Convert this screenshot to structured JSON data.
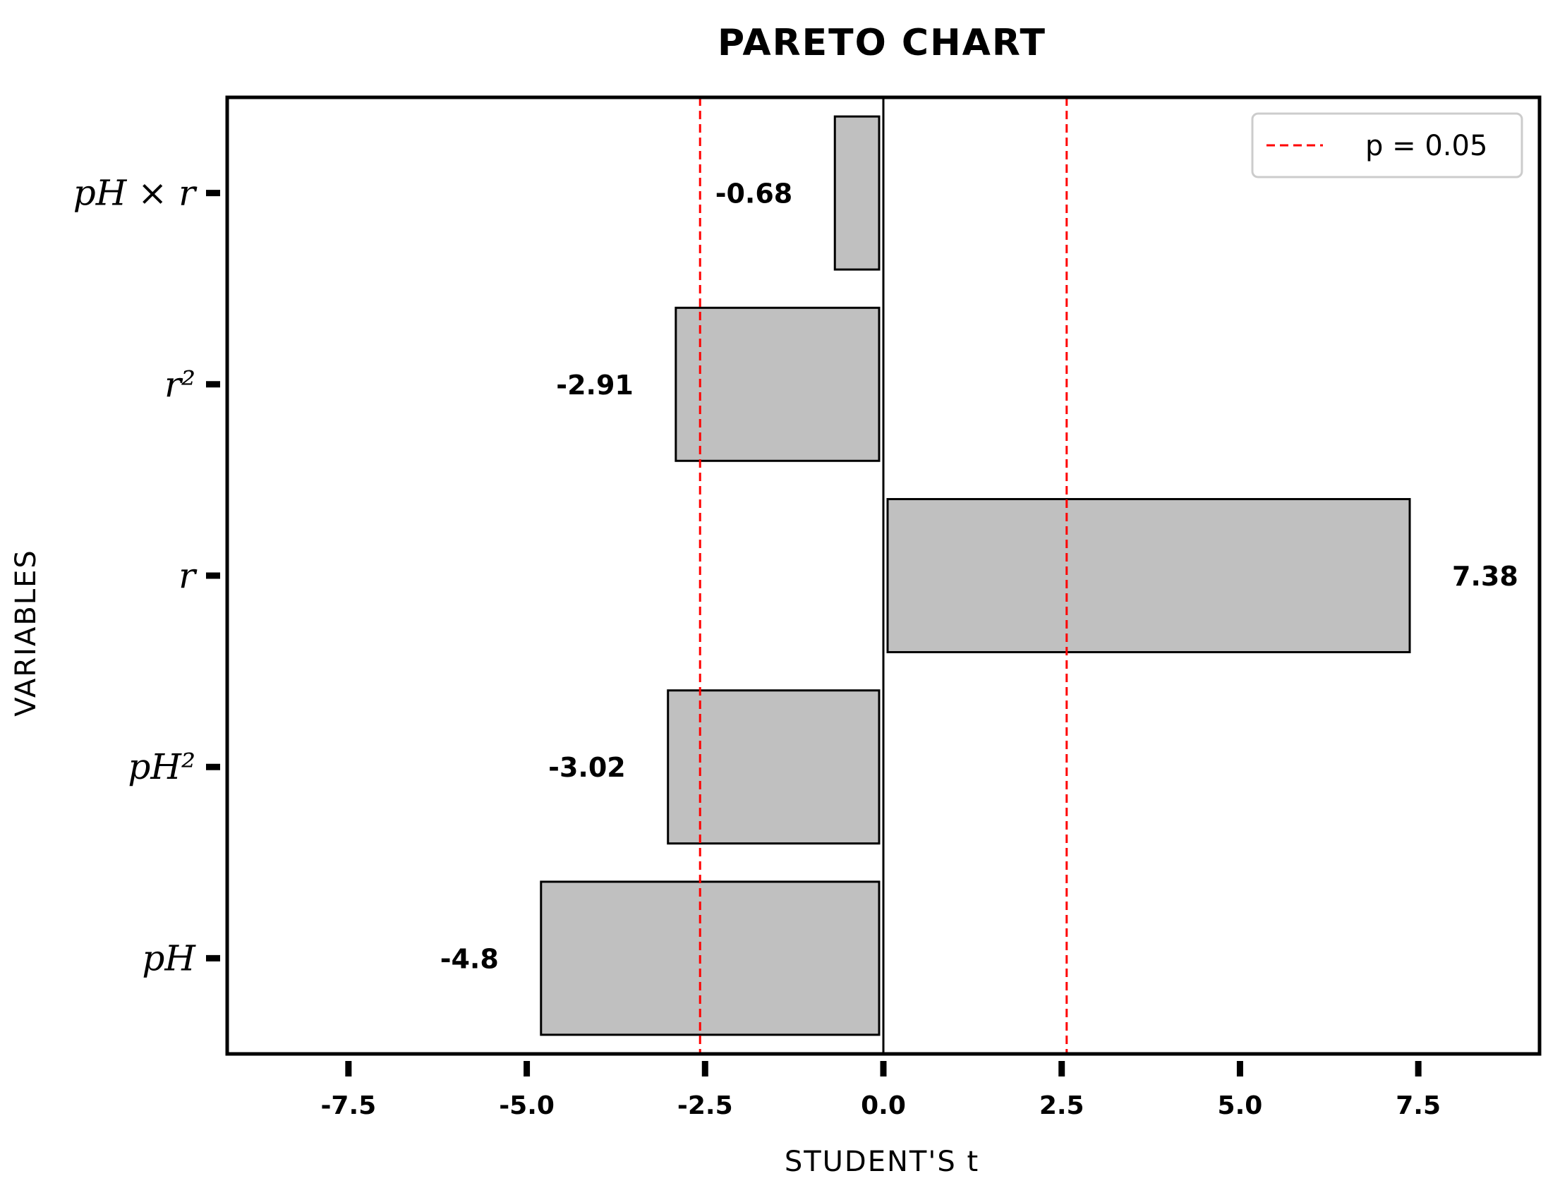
{
  "chart_data": {
    "type": "bar",
    "orientation": "horizontal",
    "title": "PARETO CHART",
    "xlabel": "STUDENT'S t",
    "ylabel": "VARIABLES",
    "categories": [
      "pH",
      "pH²",
      "r",
      "r²",
      "pH × r"
    ],
    "values": [
      -4.8,
      -3.02,
      7.38,
      -2.91,
      -0.68
    ],
    "value_labels": [
      "-4.8",
      "-3.02",
      "7.38",
      "-2.91",
      "-0.68"
    ],
    "xlim": [
      -9.2,
      9.2
    ],
    "xticks": [
      -7.5,
      -5.0,
      -2.5,
      0.0,
      2.5,
      5.0,
      7.5
    ],
    "xtick_labels": [
      "-7.5",
      "-5.0",
      "-2.5",
      "0.0",
      "2.5",
      "5.0",
      "7.5"
    ],
    "threshold": 2.57,
    "legend": {
      "label": "p = 0.05",
      "placement": "top-right"
    },
    "colors": {
      "bar_fill": "#c0c0c0",
      "bar_edge": "#000000",
      "threshold_line": "#ff0000"
    },
    "grid": false
  }
}
